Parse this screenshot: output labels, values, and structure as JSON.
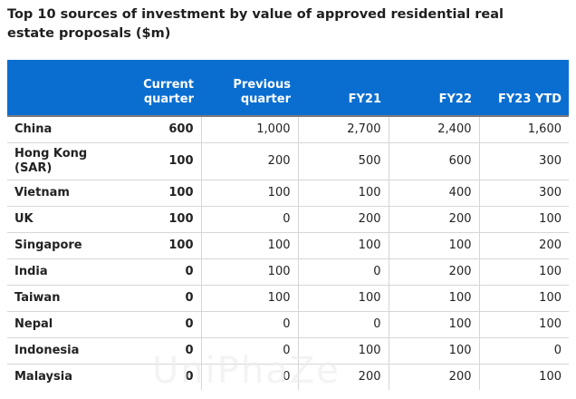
{
  "title": "Top 10 sources of investment by value of approved residential real estate proposals ($m)",
  "table": {
    "headers": [
      "",
      "Current quarter",
      "Previous quarter",
      "FY21",
      "FY22",
      "FY23 YTD"
    ],
    "rows": [
      [
        "China",
        "600",
        "1,000",
        "2,700",
        "2,400",
        "1,600"
      ],
      [
        "Hong Kong (SAR)",
        "100",
        "200",
        "500",
        "600",
        "300"
      ],
      [
        "Vietnam",
        "100",
        "100",
        "100",
        "400",
        "300"
      ],
      [
        "UK",
        "100",
        "0",
        "200",
        "200",
        "100"
      ],
      [
        "Singapore",
        "100",
        "100",
        "100",
        "100",
        "200"
      ],
      [
        "India",
        "0",
        "100",
        "0",
        "200",
        "100"
      ],
      [
        "Taiwan",
        "0",
        "100",
        "100",
        "100",
        "100"
      ],
      [
        "Nepal",
        "0",
        "0",
        "0",
        "100",
        "100"
      ],
      [
        "Indonesia",
        "0",
        "0",
        "100",
        "100",
        "0"
      ],
      [
        "Malaysia",
        "0",
        "0",
        "200",
        "200",
        "100"
      ]
    ]
  },
  "watermark": "UniPhaZe"
}
